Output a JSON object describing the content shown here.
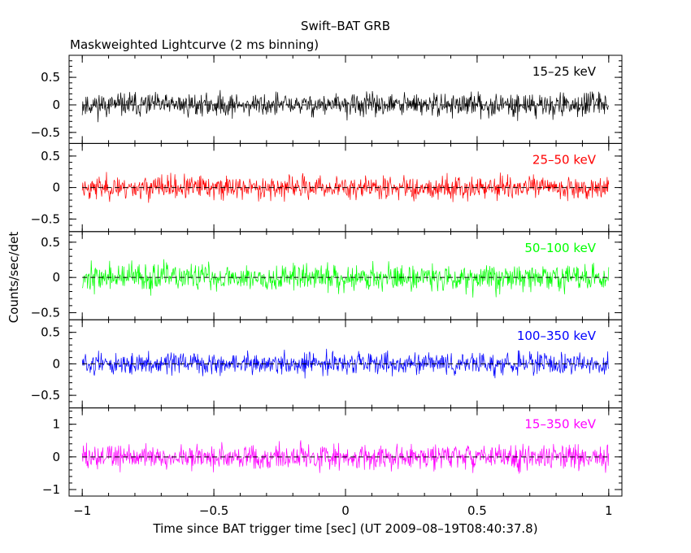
{
  "title": "Swift–BAT GRB",
  "subtitle": "Maskweighted Lightcurve (2 ms binning)",
  "chart_data": {
    "type": "line",
    "title": "Swift–BAT GRB",
    "subtitle": "Maskweighted Lightcurve (2 ms binning)",
    "xlabel": "Time since BAT trigger time [sec] (UT 2009–08–19T08:40:37.8)",
    "ylabel": "Counts/sec/det",
    "xlim": [
      -1.05,
      1.05
    ],
    "x_ticks": [
      -1,
      -0.5,
      0,
      0.5,
      1
    ],
    "x_tick_labels": [
      "−1",
      "−0.5",
      "0",
      "0.5",
      "1"
    ],
    "grid": false,
    "zero_line": "dashed",
    "binning_sec": 0.002,
    "x_range": [
      -1,
      1
    ],
    "panels": [
      {
        "band": "15–25 keV",
        "color": "#000000",
        "ylim": [
          -0.7,
          0.9
        ],
        "y_ticks": [
          -0.5,
          0,
          0.5
        ],
        "y_tick_labels": [
          "−0.5",
          "0",
          "0.5"
        ],
        "noise_amplitude": 0.27,
        "mean": 0,
        "seed": 11
      },
      {
        "band": "25–50 keV",
        "color": "#ff0000",
        "ylim": [
          -0.7,
          0.7
        ],
        "y_ticks": [
          -0.5,
          0,
          0.5
        ],
        "y_tick_labels": [
          "−0.5",
          "0",
          "0.5"
        ],
        "noise_amplitude": 0.24,
        "mean": 0,
        "seed": 23
      },
      {
        "band": "50–100 keV",
        "color": "#00ff00",
        "ylim": [
          -0.6,
          0.65
        ],
        "y_ticks": [
          -0.5,
          0,
          0.5
        ],
        "y_tick_labels": [
          "−0.5",
          "0",
          "0.5"
        ],
        "noise_amplitude": 0.25,
        "mean": 0,
        "seed": 37
      },
      {
        "band": "100–350 keV",
        "color": "#0000ff",
        "ylim": [
          -0.7,
          0.7
        ],
        "y_ticks": [
          -0.5,
          0,
          0.5
        ],
        "y_tick_labels": [
          "−0.5",
          "0",
          "0.5"
        ],
        "noise_amplitude": 0.22,
        "mean": 0,
        "seed": 51
      },
      {
        "band": "15–350 keV",
        "color": "#ff00ff",
        "ylim": [
          -1.2,
          1.5
        ],
        "y_ticks": [
          -1,
          0,
          1
        ],
        "y_tick_labels": [
          "−1",
          "0",
          "1"
        ],
        "noise_amplitude": 0.5,
        "mean": 0,
        "seed": 73
      }
    ]
  }
}
